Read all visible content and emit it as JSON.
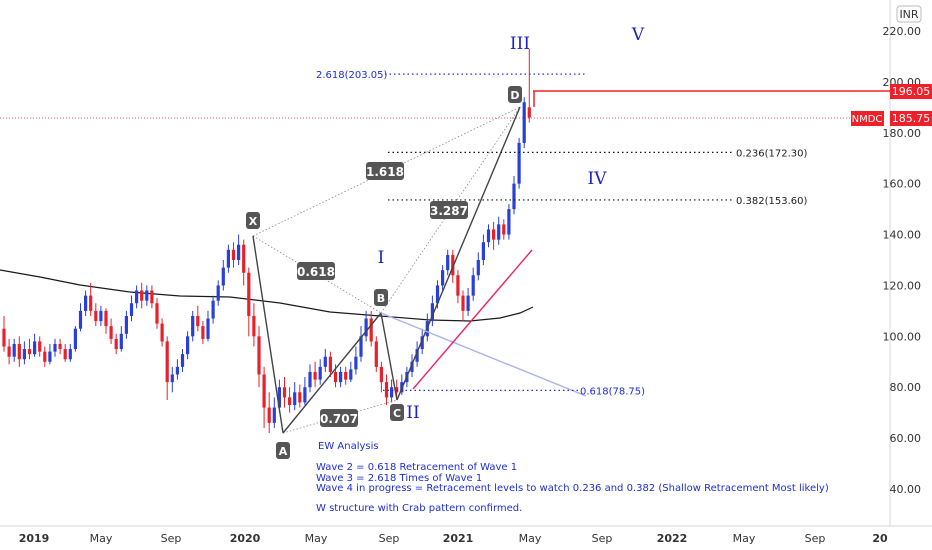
{
  "symbol": "NMDC",
  "currency": "INR",
  "last_price_label": "185.75",
  "level_label": "196.05",
  "y_ticks": [
    "220.00",
    "200.00",
    "180.00",
    "160.00",
    "140.00",
    "120.00",
    "100.00",
    "80.00",
    "60.00",
    "40.00"
  ],
  "x_ticks": [
    {
      "label": "2019",
      "bold": true
    },
    {
      "label": "May",
      "bold": false
    },
    {
      "label": "Sep",
      "bold": false
    },
    {
      "label": "2020",
      "bold": true
    },
    {
      "label": "May",
      "bold": false
    },
    {
      "label": "Sep",
      "bold": false
    },
    {
      "label": "2021",
      "bold": true
    },
    {
      "label": "May",
      "bold": false
    },
    {
      "label": "Sep",
      "bold": false
    },
    {
      "label": "2022",
      "bold": true
    },
    {
      "label": "May",
      "bold": false
    },
    {
      "label": "Sep",
      "bold": false
    },
    {
      "label": "20",
      "bold": true
    }
  ],
  "fib_labels": {
    "ext": "2.618(203.05)",
    "r236": "0.236(172.30)",
    "r382": "0.382(153.60)",
    "r618": "0.618(78.75)"
  },
  "pattern_points": {
    "X": "X",
    "A": "A",
    "B": "B",
    "C": "C",
    "D": "D"
  },
  "ratio_boxes": {
    "xb": "0.618",
    "ac": "0.707",
    "bd": "1.618",
    "xd": "3.287"
  },
  "wave_labels": {
    "w1": "I",
    "w2": "II",
    "w3": "III",
    "w4": "IV",
    "w5": "V"
  },
  "notes": [
    "EW Analysis",
    "Wave 2 = 0.618 Retracement of Wave 1",
    "Wave 3 = 2.618 Times of Wave 1",
    "Wave 4 in progress = Retracement levels to watch 0.236 and 0.382 (Shallow Retracement Most likely)",
    "W structure with Crab pattern confirmed."
  ],
  "colors": {
    "up": "#2840d8",
    "down": "#e8202a",
    "level": "#f0202a",
    "ma": "#1a1a1a",
    "pattern": "#444444",
    "trend": "#f0206a"
  },
  "chart_data": {
    "type": "candlestick",
    "ylim": [
      30,
      225
    ],
    "yticks": [
      220,
      200,
      180,
      160,
      140,
      120,
      100,
      80,
      60,
      40
    ],
    "pattern": {
      "X": {
        "date": "2020-01",
        "price": 140
      },
      "A": {
        "date": "2020-03",
        "price": 62
      },
      "B": {
        "date": "2020-09",
        "price": 110
      },
      "C": {
        "date": "2020-10",
        "price": 75
      },
      "D": {
        "date": "2021-04",
        "price": 190
      }
    },
    "levels": [
      {
        "label": "2.618(203.05)",
        "price": 203.05
      },
      {
        "label": "0.236(172.30)",
        "price": 172.3
      },
      {
        "label": "0.382(153.60)",
        "price": 153.6
      },
      {
        "label": "0.618(78.75)",
        "price": 78.75
      },
      {
        "label": "196.05",
        "price": 196.05
      },
      {
        "label": "NMDC 185.75",
        "price": 185.75
      }
    ],
    "candles": [
      {
        "o": 103,
        "c": 96,
        "h": 108,
        "l": 94
      },
      {
        "o": 96,
        "c": 92,
        "h": 99,
        "l": 89
      },
      {
        "o": 92,
        "c": 97,
        "h": 99,
        "l": 90
      },
      {
        "o": 97,
        "c": 91,
        "h": 100,
        "l": 88
      },
      {
        "o": 91,
        "c": 95,
        "h": 98,
        "l": 89
      },
      {
        "o": 95,
        "c": 93,
        "h": 99,
        "l": 91
      },
      {
        "o": 93,
        "c": 98,
        "h": 101,
        "l": 92
      },
      {
        "o": 98,
        "c": 94,
        "h": 100,
        "l": 92
      },
      {
        "o": 94,
        "c": 90,
        "h": 96,
        "l": 88
      },
      {
        "o": 90,
        "c": 94,
        "h": 97,
        "l": 89
      },
      {
        "o": 94,
        "c": 97,
        "h": 99,
        "l": 92
      },
      {
        "o": 97,
        "c": 95,
        "h": 99,
        "l": 93
      },
      {
        "o": 95,
        "c": 91,
        "h": 97,
        "l": 90
      },
      {
        "o": 91,
        "c": 95,
        "h": 97,
        "l": 90
      },
      {
        "o": 95,
        "c": 103,
        "h": 104,
        "l": 94
      },
      {
        "o": 103,
        "c": 110,
        "h": 113,
        "l": 102
      },
      {
        "o": 110,
        "c": 116,
        "h": 118,
        "l": 108
      },
      {
        "o": 116,
        "c": 110,
        "h": 121,
        "l": 108
      },
      {
        "o": 110,
        "c": 106,
        "h": 113,
        "l": 104
      },
      {
        "o": 106,
        "c": 110,
        "h": 112,
        "l": 104
      },
      {
        "o": 110,
        "c": 104,
        "h": 111,
        "l": 101
      },
      {
        "o": 104,
        "c": 99,
        "h": 107,
        "l": 97
      },
      {
        "o": 99,
        "c": 95,
        "h": 101,
        "l": 93
      },
      {
        "o": 95,
        "c": 101,
        "h": 104,
        "l": 94
      },
      {
        "o": 101,
        "c": 108,
        "h": 110,
        "l": 99
      },
      {
        "o": 108,
        "c": 113,
        "h": 116,
        "l": 106
      },
      {
        "o": 113,
        "c": 118,
        "h": 120,
        "l": 111
      },
      {
        "o": 118,
        "c": 114,
        "h": 121,
        "l": 111
      },
      {
        "o": 114,
        "c": 118,
        "h": 120,
        "l": 112
      },
      {
        "o": 118,
        "c": 113,
        "h": 120,
        "l": 111
      },
      {
        "o": 113,
        "c": 105,
        "h": 115,
        "l": 103
      },
      {
        "o": 105,
        "c": 98,
        "h": 107,
        "l": 96
      },
      {
        "o": 98,
        "c": 82,
        "h": 100,
        "l": 75
      },
      {
        "o": 82,
        "c": 85,
        "h": 88,
        "l": 78
      },
      {
        "o": 85,
        "c": 88,
        "h": 91,
        "l": 83
      },
      {
        "o": 88,
        "c": 93,
        "h": 95,
        "l": 86
      },
      {
        "o": 93,
        "c": 100,
        "h": 102,
        "l": 91
      },
      {
        "o": 100,
        "c": 108,
        "h": 110,
        "l": 98
      },
      {
        "o": 108,
        "c": 104,
        "h": 112,
        "l": 102
      },
      {
        "o": 104,
        "c": 99,
        "h": 106,
        "l": 97
      },
      {
        "o": 99,
        "c": 107,
        "h": 110,
        "l": 98
      },
      {
        "o": 107,
        "c": 114,
        "h": 116,
        "l": 105
      },
      {
        "o": 114,
        "c": 120,
        "h": 122,
        "l": 112
      },
      {
        "o": 120,
        "c": 127,
        "h": 130,
        "l": 118
      },
      {
        "o": 127,
        "c": 134,
        "h": 136,
        "l": 125
      },
      {
        "o": 134,
        "c": 130,
        "h": 137,
        "l": 127
      },
      {
        "o": 130,
        "c": 136,
        "h": 140,
        "l": 128
      },
      {
        "o": 136,
        "c": 125,
        "h": 138,
        "l": 120
      },
      {
        "o": 125,
        "c": 108,
        "h": 127,
        "l": 100
      },
      {
        "o": 108,
        "c": 100,
        "h": 113,
        "l": 96
      },
      {
        "o": 100,
        "c": 85,
        "h": 104,
        "l": 80
      },
      {
        "o": 85,
        "c": 72,
        "h": 88,
        "l": 64
      },
      {
        "o": 72,
        "c": 66,
        "h": 78,
        "l": 62
      },
      {
        "o": 66,
        "c": 72,
        "h": 76,
        "l": 64
      },
      {
        "o": 72,
        "c": 80,
        "h": 83,
        "l": 70
      },
      {
        "o": 80,
        "c": 76,
        "h": 84,
        "l": 72
      },
      {
        "o": 76,
        "c": 73,
        "h": 80,
        "l": 70
      },
      {
        "o": 73,
        "c": 78,
        "h": 82,
        "l": 71
      },
      {
        "o": 78,
        "c": 74,
        "h": 81,
        "l": 72
      },
      {
        "o": 74,
        "c": 80,
        "h": 84,
        "l": 73
      },
      {
        "o": 80,
        "c": 86,
        "h": 89,
        "l": 78
      },
      {
        "o": 86,
        "c": 83,
        "h": 90,
        "l": 80
      },
      {
        "o": 83,
        "c": 88,
        "h": 91,
        "l": 81
      },
      {
        "o": 88,
        "c": 92,
        "h": 95,
        "l": 86
      },
      {
        "o": 92,
        "c": 86,
        "h": 94,
        "l": 84
      },
      {
        "o": 86,
        "c": 82,
        "h": 89,
        "l": 80
      },
      {
        "o": 82,
        "c": 86,
        "h": 88,
        "l": 80
      },
      {
        "o": 86,
        "c": 83,
        "h": 88,
        "l": 81
      },
      {
        "o": 83,
        "c": 87,
        "h": 90,
        "l": 82
      },
      {
        "o": 87,
        "c": 92,
        "h": 96,
        "l": 85
      },
      {
        "o": 92,
        "c": 100,
        "h": 104,
        "l": 90
      },
      {
        "o": 100,
        "c": 107,
        "h": 110,
        "l": 98
      },
      {
        "o": 107,
        "c": 98,
        "h": 110,
        "l": 96
      },
      {
        "o": 98,
        "c": 88,
        "h": 100,
        "l": 86
      },
      {
        "o": 88,
        "c": 82,
        "h": 90,
        "l": 78
      },
      {
        "o": 82,
        "c": 76,
        "h": 85,
        "l": 73
      },
      {
        "o": 76,
        "c": 80,
        "h": 83,
        "l": 74
      },
      {
        "o": 80,
        "c": 78,
        "h": 83,
        "l": 75
      },
      {
        "o": 78,
        "c": 82,
        "h": 85,
        "l": 77
      },
      {
        "o": 82,
        "c": 86,
        "h": 88,
        "l": 80
      },
      {
        "o": 86,
        "c": 90,
        "h": 93,
        "l": 84
      },
      {
        "o": 90,
        "c": 95,
        "h": 98,
        "l": 88
      },
      {
        "o": 95,
        "c": 100,
        "h": 103,
        "l": 93
      },
      {
        "o": 100,
        "c": 106,
        "h": 109,
        "l": 98
      },
      {
        "o": 106,
        "c": 113,
        "h": 116,
        "l": 104
      },
      {
        "o": 113,
        "c": 120,
        "h": 122,
        "l": 111
      },
      {
        "o": 120,
        "c": 126,
        "h": 128,
        "l": 118
      },
      {
        "o": 126,
        "c": 132,
        "h": 134,
        "l": 124
      },
      {
        "o": 132,
        "c": 124,
        "h": 134,
        "l": 121
      },
      {
        "o": 124,
        "c": 116,
        "h": 126,
        "l": 113
      },
      {
        "o": 116,
        "c": 110,
        "h": 118,
        "l": 106
      },
      {
        "o": 110,
        "c": 116,
        "h": 119,
        "l": 108
      },
      {
        "o": 116,
        "c": 124,
        "h": 127,
        "l": 114
      },
      {
        "o": 124,
        "c": 130,
        "h": 133,
        "l": 122
      },
      {
        "o": 130,
        "c": 137,
        "h": 140,
        "l": 128
      },
      {
        "o": 137,
        "c": 142,
        "h": 144,
        "l": 135
      },
      {
        "o": 142,
        "c": 138,
        "h": 145,
        "l": 134
      },
      {
        "o": 138,
        "c": 144,
        "h": 147,
        "l": 136
      },
      {
        "o": 144,
        "c": 140,
        "h": 146,
        "l": 138
      },
      {
        "o": 140,
        "c": 150,
        "h": 152,
        "l": 138
      },
      {
        "o": 150,
        "c": 160,
        "h": 163,
        "l": 148
      },
      {
        "o": 160,
        "c": 176,
        "h": 178,
        "l": 158
      },
      {
        "o": 176,
        "c": 192,
        "h": 194,
        "l": 174
      },
      {
        "o": 190,
        "c": 186,
        "h": 213,
        "l": 184
      }
    ]
  }
}
